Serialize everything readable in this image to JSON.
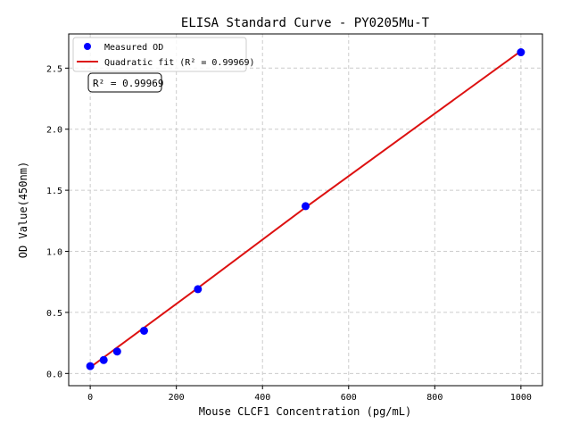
{
  "chart_data": {
    "type": "scatter",
    "title": "ELISA Standard Curve - PY0205Mu-T",
    "xlabel": "Mouse CLCF1 Concentration (pg/mL)",
    "ylabel": "OD Value(450nm)",
    "xlim": [
      -50,
      1050
    ],
    "ylim": [
      -0.1,
      2.78
    ],
    "xticks": [
      0,
      200,
      400,
      600,
      800,
      1000
    ],
    "xtick_labels": [
      "0",
      "200",
      "400",
      "600",
      "800",
      "1000"
    ],
    "yticks": [
      0,
      0.5,
      1.0,
      1.5,
      2.0,
      2.5
    ],
    "ytick_labels": [
      "0.0",
      "0.5",
      "1.0",
      "1.5",
      "2.0",
      "2.5"
    ],
    "grid": true,
    "legend_position": "top-left",
    "series": [
      {
        "name": "Measured OD",
        "kind": "scatter",
        "color": "#0000ff",
        "x": [
          0,
          31.25,
          62.5,
          125,
          250,
          500,
          1000
        ],
        "y": [
          0.06,
          0.11,
          0.18,
          0.35,
          0.69,
          1.37,
          2.63
        ]
      },
      {
        "name": "Quadratic fit (R² = 0.99969)",
        "kind": "line",
        "color": "#dd1111",
        "x": [
          0,
          250,
          500,
          750,
          1000
        ],
        "y": [
          0.05,
          0.7,
          1.36,
          2.0,
          2.64
        ]
      }
    ],
    "annotation": "R² = 0.99969"
  }
}
